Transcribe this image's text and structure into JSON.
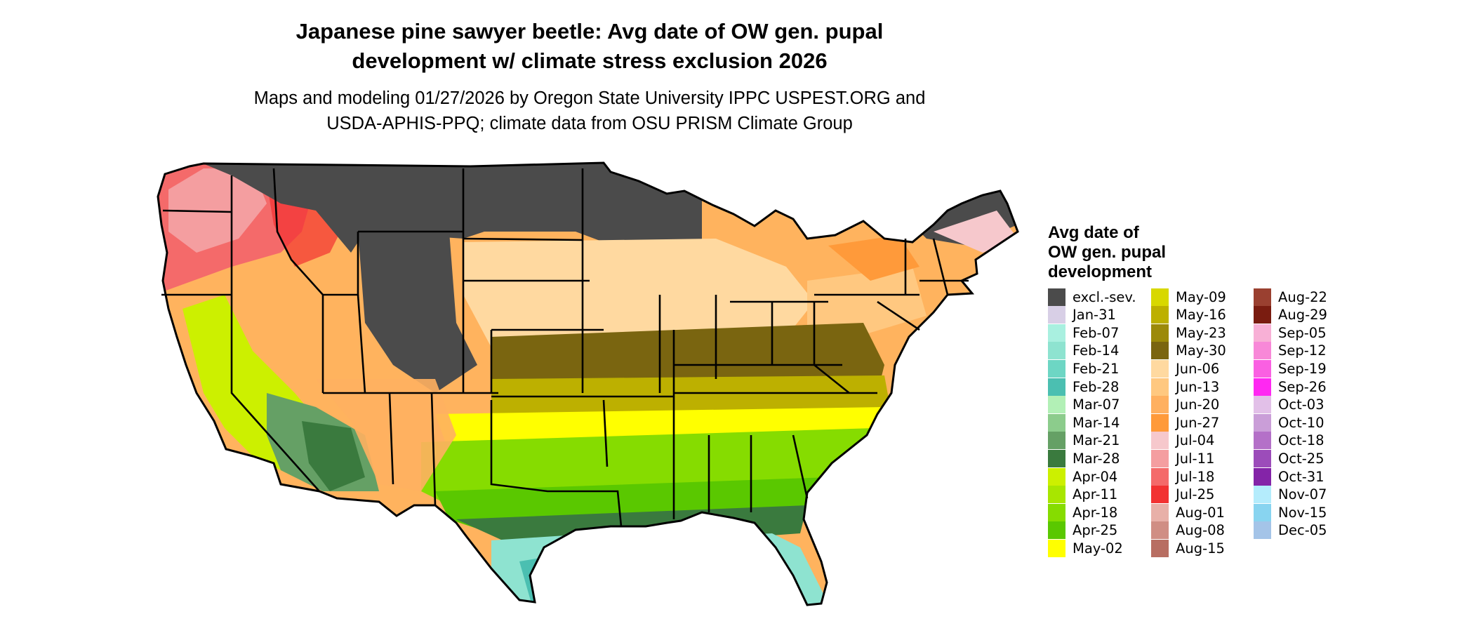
{
  "title": {
    "line1": "Japanese pine sawyer beetle: Avg date of OW gen. pupal",
    "line2": "development w/ climate stress exclusion 2026"
  },
  "subtitle": {
    "line1": "Maps and modeling 01/27/2026 by Oregon State University IPPC USPEST.ORG and",
    "line2": "USDA-APHIS-PPQ; climate data from OSU PRISM Climate Group"
  },
  "legend": {
    "title": "Avg date of\nOW gen. pupal\ndevelopment",
    "columns": [
      [
        {
          "label": "excl.-sev.",
          "color": "#4b4b4b"
        },
        {
          "label": "Jan-31",
          "color": "#d8cfe6"
        },
        {
          "label": "Feb-07",
          "color": "#a9f0e0"
        },
        {
          "label": "Feb-14",
          "color": "#8ee3d0"
        },
        {
          "label": "Feb-21",
          "color": "#6dd6c4"
        },
        {
          "label": "Feb-28",
          "color": "#4bbfb1"
        },
        {
          "label": "Mar-07",
          "color": "#b2f0b6"
        },
        {
          "label": "Mar-14",
          "color": "#8ccc8c"
        },
        {
          "label": "Mar-21",
          "color": "#65a065"
        },
        {
          "label": "Mar-28",
          "color": "#3a7a3e"
        },
        {
          "label": "Apr-04",
          "color": "#ccf000"
        },
        {
          "label": "Apr-11",
          "color": "#a8e600"
        },
        {
          "label": "Apr-18",
          "color": "#86dc00"
        },
        {
          "label": "Apr-25",
          "color": "#5ac800"
        },
        {
          "label": "May-02",
          "color": "#ffff00"
        }
      ],
      [
        {
          "label": "May-09",
          "color": "#d8d800"
        },
        {
          "label": "May-16",
          "color": "#bdb000"
        },
        {
          "label": "May-23",
          "color": "#9c8a0a"
        },
        {
          "label": "May-30",
          "color": "#7a6510"
        },
        {
          "label": "Jun-06",
          "color": "#ffd9a0"
        },
        {
          "label": "Jun-13",
          "color": "#ffc880"
        },
        {
          "label": "Jun-20",
          "color": "#ffb060"
        },
        {
          "label": "Jun-27",
          "color": "#ff9a3a"
        },
        {
          "label": "Jul-04",
          "color": "#f6c8cc"
        },
        {
          "label": "Jul-11",
          "color": "#f49ea0"
        },
        {
          "label": "Jul-18",
          "color": "#f46a6a"
        },
        {
          "label": "Jul-25",
          "color": "#f23232"
        },
        {
          "label": "Aug-01",
          "color": "#e8b0a8"
        },
        {
          "label": "Aug-08",
          "color": "#d08e84"
        },
        {
          "label": "Aug-15",
          "color": "#b86e62"
        }
      ],
      [
        {
          "label": "Aug-22",
          "color": "#9a4030"
        },
        {
          "label": "Aug-29",
          "color": "#7a1c10"
        },
        {
          "label": "Sep-05",
          "color": "#f8b0d6"
        },
        {
          "label": "Sep-12",
          "color": "#f888d8"
        },
        {
          "label": "Sep-19",
          "color": "#fa60e2"
        },
        {
          "label": "Sep-26",
          "color": "#ff28f2"
        },
        {
          "label": "Oct-03",
          "color": "#e2c0e8"
        },
        {
          "label": "Oct-10",
          "color": "#ca9ed8"
        },
        {
          "label": "Oct-18",
          "color": "#b470c8"
        },
        {
          "label": "Oct-25",
          "color": "#9c4cba"
        },
        {
          "label": "Oct-31",
          "color": "#8424a8"
        },
        {
          "label": "Nov-07",
          "color": "#b4ecfc"
        },
        {
          "label": "Nov-15",
          "color": "#88d4f0"
        },
        {
          "label": "Dec-05",
          "color": "#a4c4e8"
        }
      ]
    ]
  }
}
